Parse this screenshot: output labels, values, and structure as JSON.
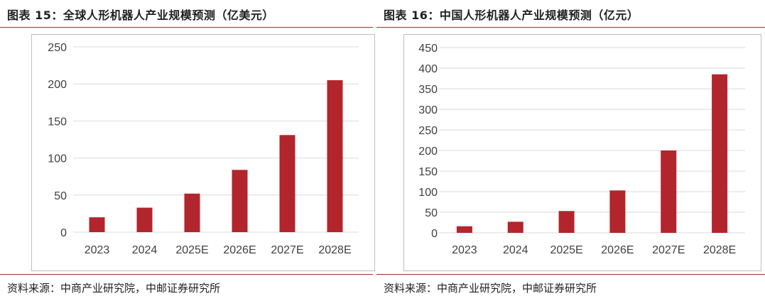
{
  "left": {
    "title": "图表 15：全球人形机器人产业规模预测（亿美元）",
    "source": "资料来源：中商产业研究院，中邮证券研究所"
  },
  "right": {
    "title": "图表 16：中国人形机器人产业规模预测（亿元）",
    "source": "资料来源：中商产业研究院，中邮证券研究所"
  },
  "colors": {
    "bar": "#b3252c",
    "grid": "#d9d9d9",
    "rule": "#b3252c"
  },
  "chart_data": [
    {
      "type": "bar",
      "title": "图表 15：全球人形机器人产业规模预测（亿美元）",
      "categories": [
        "2023",
        "2024",
        "2025E",
        "2026E",
        "2027E",
        "2028E"
      ],
      "values": [
        20,
        33,
        52,
        84,
        131,
        205
      ],
      "ylim": [
        0,
        250
      ],
      "yticks": [
        0,
        50,
        100,
        150,
        200,
        250
      ],
      "grid": true,
      "legend": "none"
    },
    {
      "type": "bar",
      "title": "图表 16：中国人形机器人产业规模预测（亿元）",
      "categories": [
        "2023",
        "2024",
        "2025E",
        "2026E",
        "2027E",
        "2028E"
      ],
      "values": [
        16,
        27,
        53,
        103,
        200,
        385
      ],
      "ylim": [
        0,
        450
      ],
      "yticks": [
        0,
        50,
        100,
        150,
        200,
        250,
        300,
        350,
        400,
        450
      ],
      "grid": true,
      "legend": "none"
    }
  ]
}
